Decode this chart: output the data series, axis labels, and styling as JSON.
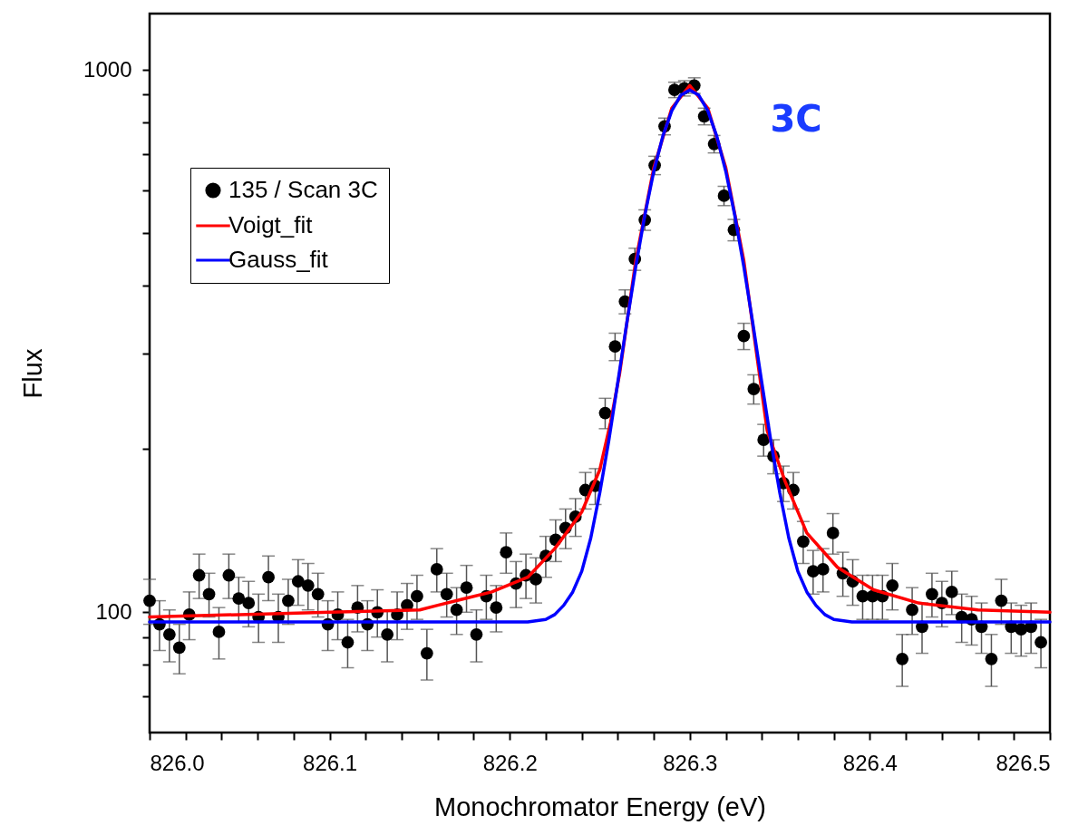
{
  "chart_data": {
    "type": "scatter",
    "xlabel": "Monochromator Energy (eV)",
    "ylabel": "Flux",
    "log": "y",
    "grid": false,
    "legend": "top left",
    "annotations": [
      "3C"
    ],
    "xlim": [
      826.0,
      826.5
    ],
    "xticks": [
      {
        "value": 826.0,
        "label": "826.0"
      },
      {
        "value": 826.02,
        "label": null
      },
      {
        "value": 826.04,
        "label": null
      },
      {
        "value": 826.06,
        "label": null
      },
      {
        "value": 826.08,
        "label": null
      },
      {
        "value": 826.1,
        "label": "826.1"
      },
      {
        "value": 826.12,
        "label": null
      },
      {
        "value": 826.14,
        "label": null
      },
      {
        "value": 826.16,
        "label": null
      },
      {
        "value": 826.18,
        "label": null
      },
      {
        "value": 826.2,
        "label": "826.2"
      },
      {
        "value": 826.22,
        "label": null
      },
      {
        "value": 826.24,
        "label": null
      },
      {
        "value": 826.26,
        "label": null
      },
      {
        "value": 826.28,
        "label": null
      },
      {
        "value": 826.3,
        "label": "826.3"
      },
      {
        "value": 826.32,
        "label": null
      },
      {
        "value": 826.34,
        "label": null
      },
      {
        "value": 826.36,
        "label": null
      },
      {
        "value": 826.38,
        "label": null
      },
      {
        "value": 826.4,
        "label": "826.4"
      },
      {
        "value": 826.42,
        "label": null
      },
      {
        "value": 826.44,
        "label": null
      },
      {
        "value": 826.46,
        "label": null
      },
      {
        "value": 826.48,
        "label": null
      },
      {
        "value": 826.5,
        "label": "826.5"
      }
    ],
    "ylim": [
      60,
      1270
    ],
    "yticks": [
      {
        "value": 70,
        "label": null
      },
      {
        "value": 80,
        "label": null
      },
      {
        "value": 90,
        "label": null
      },
      100,
      {
        "value": 200,
        "label": null
      },
      {
        "value": 300,
        "label": null
      },
      {
        "value": 400,
        "label": null
      },
      {
        "value": 500,
        "label": null
      },
      {
        "value": 600,
        "label": null
      },
      {
        "value": 700,
        "label": null
      },
      {
        "value": 800,
        "label": null
      },
      {
        "value": 900,
        "label": null
      },
      1000
    ],
    "series": [
      {
        "name": "135 / Scan 3C",
        "color": "#000000",
        "marker": "circle",
        "x": [
          826,
          826.0055,
          826.011,
          826.0165,
          826.022,
          826.0275,
          826.033,
          826.0385,
          826.044,
          826.0495,
          826.055,
          826.0605,
          826.066,
          826.0715,
          826.077,
          826.0825,
          826.088,
          826.0935,
          826.099,
          826.1045,
          826.11,
          826.1155,
          826.121,
          826.1265,
          826.132,
          826.1375,
          826.143,
          826.1485,
          826.154,
          826.1595,
          826.165,
          826.1705,
          826.176,
          826.1815,
          826.187,
          826.1925,
          826.198,
          826.2035,
          826.209,
          826.2145,
          826.22,
          826.2255,
          826.231,
          826.2365,
          826.242,
          826.2475,
          826.253,
          826.2585,
          826.264,
          826.2695,
          826.275,
          826.2805,
          826.286,
          826.2915,
          826.297,
          826.3025,
          826.308,
          826.3135,
          826.319,
          826.3245,
          826.33,
          826.3355,
          826.341,
          826.3465,
          826.352,
          826.3575,
          826.363,
          826.3685,
          826.374,
          826.3795,
          826.385,
          826.3905,
          826.396,
          826.4015,
          826.407,
          826.4125,
          826.418,
          826.4235,
          826.429,
          826.4345,
          826.44,
          826.4455,
          826.451,
          826.4565,
          826.462,
          826.4675,
          826.473,
          826.4785,
          826.484,
          826.4895,
          826.495
        ],
        "values": [
          105,
          95,
          91,
          86,
          99,
          117,
          108,
          92,
          117,
          106,
          104,
          98,
          116,
          98,
          105,
          114,
          112,
          108,
          95,
          99,
          88,
          102,
          95,
          100,
          91,
          99,
          103,
          107,
          84,
          120,
          108,
          101,
          111,
          91,
          107,
          102,
          129,
          113,
          117,
          115,
          127,
          136,
          143,
          150,
          168,
          171,
          233,
          309,
          374,
          448,
          529,
          667,
          787,
          919,
          925,
          936,
          821,
          730,
          586,
          507,
          323,
          258,
          208,
          194,
          173,
          168,
          135,
          119,
          120,
          140,
          118,
          114,
          107,
          107,
          107,
          112,
          82,
          101,
          94,
          108,
          104,
          109,
          98,
          97,
          94,
          82,
          105,
          94,
          93,
          94,
          88
        ],
        "errors": [
          10,
          10,
          10,
          9,
          10,
          11,
          10,
          10,
          11,
          10,
          10,
          10,
          11,
          10,
          10,
          11,
          11,
          10,
          10,
          10,
          9,
          10,
          10,
          10,
          10,
          10,
          10,
          10,
          9,
          11,
          10,
          10,
          11,
          10,
          10,
          10,
          11,
          11,
          11,
          11,
          11,
          12,
          12,
          12,
          13,
          13,
          15,
          18,
          19,
          21,
          23,
          26,
          28,
          30,
          30,
          31,
          29,
          27,
          24,
          23,
          18,
          16,
          14,
          14,
          13,
          13,
          12,
          11,
          11,
          12,
          11,
          11,
          10,
          10,
          10,
          11,
          9,
          10,
          10,
          10,
          10,
          10,
          10,
          10,
          10,
          9,
          10,
          10,
          10,
          10,
          9
        ]
      },
      {
        "name": "Voigt_fit",
        "type": "line",
        "color": "#ff0000",
        "x": [
          826.0,
          826.05,
          826.1,
          826.15,
          826.16,
          826.19,
          826.21,
          826.225,
          826.24,
          826.25,
          826.256,
          826.261,
          826.27,
          826.28,
          826.29,
          826.3,
          826.31,
          826.32,
          826.33,
          826.343,
          826.353,
          826.365,
          826.382,
          826.402,
          826.427,
          826.46,
          826.5
        ],
        "values": [
          98,
          99,
          100,
          101,
          103,
          109,
          116,
          131,
          153,
          183,
          224,
          275,
          445,
          660,
          850,
          936,
          850,
          660,
          445,
          216,
          174,
          140,
          121,
          110,
          104,
          101,
          100
        ]
      },
      {
        "name": "Gauss_fit",
        "type": "line",
        "color": "#0000ff",
        "x": [
          826.0,
          826.1,
          826.2,
          826.21,
          826.22,
          826.225,
          826.23,
          826.235,
          826.24,
          826.245,
          826.25,
          826.255,
          826.26,
          826.265,
          826.27,
          826.275,
          826.28,
          826.285,
          826.29,
          826.295,
          826.3,
          826.305,
          826.31,
          826.315,
          826.32,
          826.325,
          826.33,
          826.335,
          826.34,
          826.345,
          826.35,
          826.355,
          826.36,
          826.365,
          826.37,
          826.375,
          826.38,
          826.39,
          826.4,
          826.5
        ],
        "values": [
          96,
          96,
          96,
          96,
          97,
          99,
          103,
          109,
          119,
          137,
          166,
          207,
          265,
          341,
          434,
          539,
          650,
          754,
          841,
          898,
          918,
          898,
          841,
          754,
          650,
          539,
          434,
          341,
          265,
          207,
          166,
          137,
          119,
          109,
          103,
          99,
          97,
          96,
          96,
          96
        ]
      }
    ]
  }
}
